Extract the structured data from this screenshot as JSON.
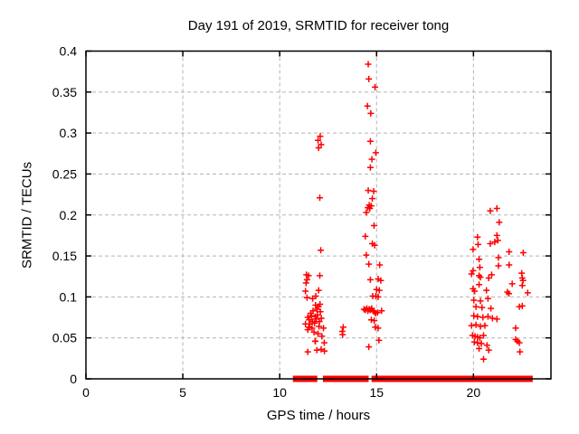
{
  "style": {
    "background": "#ffffff",
    "axis_color": "#000000",
    "grid_color": "#b4b4b4",
    "text_color": "#000000",
    "marker_color": "#ff0000"
  },
  "chart_data": {
    "type": "scatter",
    "title": "Day 191 of 2019, SRMTID for receiver tong",
    "xlabel": "GPS time / hours",
    "ylabel": "SRMTID / TECUs",
    "xlim": [
      0,
      24
    ],
    "ylim": [
      0,
      0.4
    ],
    "xticks": {
      "values": [
        0,
        5,
        10,
        15,
        20
      ],
      "labels": [
        "0",
        "5",
        "10",
        "15",
        "20"
      ]
    },
    "yticks": {
      "values": [
        0,
        0.05,
        0.1,
        0.15,
        0.2,
        0.25,
        0.3,
        0.35,
        0.4
      ],
      "labels": [
        "0",
        "0.05",
        "0.1",
        "0.15",
        "0.2",
        "0.25",
        "0.3",
        "0.35",
        "0.4"
      ]
    },
    "grid": true,
    "legend_position": "none",
    "marker": {
      "shape": "plus",
      "color": "#ff0000",
      "size": 7
    },
    "series": [
      {
        "name": "SRMTID",
        "points": [
          [
            12.09,
            0.296
          ],
          [
            11.98,
            0.291
          ],
          [
            12.14,
            0.286
          ],
          [
            12.01,
            0.282
          ],
          [
            12.07,
            0.221
          ],
          [
            12.12,
            0.157
          ],
          [
            11.38,
            0.127
          ],
          [
            11.49,
            0.126
          ],
          [
            12.07,
            0.126
          ],
          [
            11.41,
            0.121
          ],
          [
            11.36,
            0.117
          ],
          [
            11.33,
            0.107
          ],
          [
            12.01,
            0.108
          ],
          [
            11.86,
            0.101
          ],
          [
            11.41,
            0.099
          ],
          [
            11.7,
            0.098
          ],
          [
            11.92,
            0.085
          ],
          [
            12.1,
            0.082
          ],
          [
            11.64,
            0.077
          ],
          [
            11.83,
            0.076
          ],
          [
            11.45,
            0.075
          ],
          [
            12.15,
            0.074
          ],
          [
            11.69,
            0.07
          ],
          [
            11.33,
            0.067
          ],
          [
            11.56,
            0.067
          ],
          [
            12.03,
            0.064
          ],
          [
            12.26,
            0.062
          ],
          [
            11.45,
            0.06
          ],
          [
            11.77,
            0.057
          ],
          [
            11.98,
            0.055
          ],
          [
            12.18,
            0.052
          ],
          [
            11.52,
            0.072
          ],
          [
            11.6,
            0.08
          ],
          [
            11.72,
            0.083
          ],
          [
            11.8,
            0.068
          ],
          [
            11.88,
            0.073
          ],
          [
            11.95,
            0.078
          ],
          [
            12.05,
            0.07
          ],
          [
            11.5,
            0.063
          ],
          [
            11.67,
            0.062
          ],
          [
            12.0,
            0.088
          ],
          [
            11.85,
            0.09
          ],
          [
            12.08,
            0.091
          ],
          [
            11.84,
            0.046
          ],
          [
            12.3,
            0.044
          ],
          [
            11.45,
            0.033
          ],
          [
            11.92,
            0.035
          ],
          [
            12.14,
            0.036
          ],
          [
            12.31,
            0.034
          ],
          [
            11.83,
            0.046
          ],
          [
            13.23,
            0.058
          ],
          [
            13.25,
            0.054
          ],
          [
            13.28,
            0.063
          ],
          [
            14.57,
            0.384
          ],
          [
            14.6,
            0.366
          ],
          [
            14.92,
            0.356
          ],
          [
            14.53,
            0.333
          ],
          [
            14.7,
            0.324
          ],
          [
            14.68,
            0.29
          ],
          [
            14.96,
            0.276
          ],
          [
            14.76,
            0.268
          ],
          [
            14.68,
            0.258
          ],
          [
            14.57,
            0.23
          ],
          [
            14.85,
            0.229
          ],
          [
            14.78,
            0.22
          ],
          [
            14.62,
            0.212
          ],
          [
            14.72,
            0.211
          ],
          [
            14.55,
            0.209
          ],
          [
            14.65,
            0.208
          ],
          [
            14.47,
            0.203
          ],
          [
            14.87,
            0.187
          ],
          [
            14.42,
            0.174
          ],
          [
            14.78,
            0.165
          ],
          [
            14.9,
            0.163
          ],
          [
            14.47,
            0.151
          ],
          [
            14.6,
            0.14
          ],
          [
            15.16,
            0.139
          ],
          [
            14.68,
            0.121
          ],
          [
            15.08,
            0.122
          ],
          [
            15.22,
            0.12
          ],
          [
            15.0,
            0.109
          ],
          [
            15.14,
            0.108
          ],
          [
            14.8,
            0.101
          ],
          [
            14.96,
            0.101
          ],
          [
            15.08,
            0.1
          ],
          [
            14.35,
            0.085
          ],
          [
            14.42,
            0.084
          ],
          [
            14.5,
            0.086
          ],
          [
            14.55,
            0.083
          ],
          [
            14.62,
            0.085
          ],
          [
            14.68,
            0.084
          ],
          [
            14.75,
            0.086
          ],
          [
            14.82,
            0.083
          ],
          [
            14.88,
            0.082
          ],
          [
            14.95,
            0.08
          ],
          [
            15.05,
            0.081
          ],
          [
            15.26,
            0.083
          ],
          [
            14.73,
            0.072
          ],
          [
            14.88,
            0.071
          ],
          [
            14.93,
            0.063
          ],
          [
            15.08,
            0.062
          ],
          [
            15.12,
            0.047
          ],
          [
            14.6,
            0.039
          ],
          [
            20.87,
            0.205
          ],
          [
            21.21,
            0.208
          ],
          [
            21.33,
            0.191
          ],
          [
            21.21,
            0.175
          ],
          [
            21.26,
            0.169
          ],
          [
            20.21,
            0.173
          ],
          [
            20.24,
            0.164
          ],
          [
            20.87,
            0.165
          ],
          [
            21.1,
            0.167
          ],
          [
            19.98,
            0.158
          ],
          [
            21.84,
            0.155
          ],
          [
            22.57,
            0.154
          ],
          [
            20.29,
            0.146
          ],
          [
            21.29,
            0.148
          ],
          [
            20.33,
            0.136
          ],
          [
            19.98,
            0.132
          ],
          [
            21.29,
            0.138
          ],
          [
            21.84,
            0.139
          ],
          [
            20.29,
            0.126
          ],
          [
            20.94,
            0.127
          ],
          [
            19.9,
            0.128
          ],
          [
            22.49,
            0.129
          ],
          [
            22.56,
            0.12
          ],
          [
            20.36,
            0.124
          ],
          [
            20.79,
            0.123
          ],
          [
            22.52,
            0.123
          ],
          [
            22.0,
            0.116
          ],
          [
            22.52,
            0.114
          ],
          [
            19.98,
            0.11
          ],
          [
            20.06,
            0.107
          ],
          [
            20.29,
            0.115
          ],
          [
            20.67,
            0.108
          ],
          [
            21.75,
            0.106
          ],
          [
            21.83,
            0.104
          ],
          [
            22.8,
            0.105
          ],
          [
            20.02,
            0.096
          ],
          [
            20.36,
            0.095
          ],
          [
            20.75,
            0.098
          ],
          [
            20.13,
            0.088
          ],
          [
            20.44,
            0.087
          ],
          [
            20.9,
            0.086
          ],
          [
            22.37,
            0.088
          ],
          [
            22.52,
            0.089
          ],
          [
            20.02,
            0.077
          ],
          [
            20.21,
            0.076
          ],
          [
            20.49,
            0.075
          ],
          [
            20.75,
            0.076
          ],
          [
            20.98,
            0.074
          ],
          [
            21.21,
            0.073
          ],
          [
            19.9,
            0.065
          ],
          [
            20.13,
            0.066
          ],
          [
            20.36,
            0.064
          ],
          [
            20.59,
            0.065
          ],
          [
            22.18,
            0.062
          ],
          [
            19.95,
            0.053
          ],
          [
            20.08,
            0.052
          ],
          [
            20.21,
            0.051
          ],
          [
            20.33,
            0.05
          ],
          [
            20.52,
            0.053
          ],
          [
            20.05,
            0.045
          ],
          [
            20.21,
            0.044
          ],
          [
            20.41,
            0.043
          ],
          [
            20.7,
            0.041
          ],
          [
            22.18,
            0.048
          ],
          [
            22.27,
            0.046
          ],
          [
            22.37,
            0.044
          ],
          [
            20.29,
            0.037
          ],
          [
            20.79,
            0.035
          ],
          [
            22.4,
            0.033
          ],
          [
            20.52,
            0.024
          ]
        ]
      }
    ],
    "zero_line_segments": [
      [
        10.82,
        11.44
      ],
      [
        11.57,
        11.67
      ],
      [
        11.72,
        11.8
      ],
      [
        12.37,
        14.45
      ],
      [
        14.88,
        14.97
      ],
      [
        15.22,
        20.1
      ],
      [
        20.36,
        20.42
      ],
      [
        20.47,
        20.53
      ],
      [
        20.65,
        20.87
      ],
      [
        21.09,
        21.28
      ],
      [
        21.43,
        22.05
      ],
      [
        22.18,
        22.52
      ],
      [
        22.64,
        22.92
      ]
    ]
  }
}
